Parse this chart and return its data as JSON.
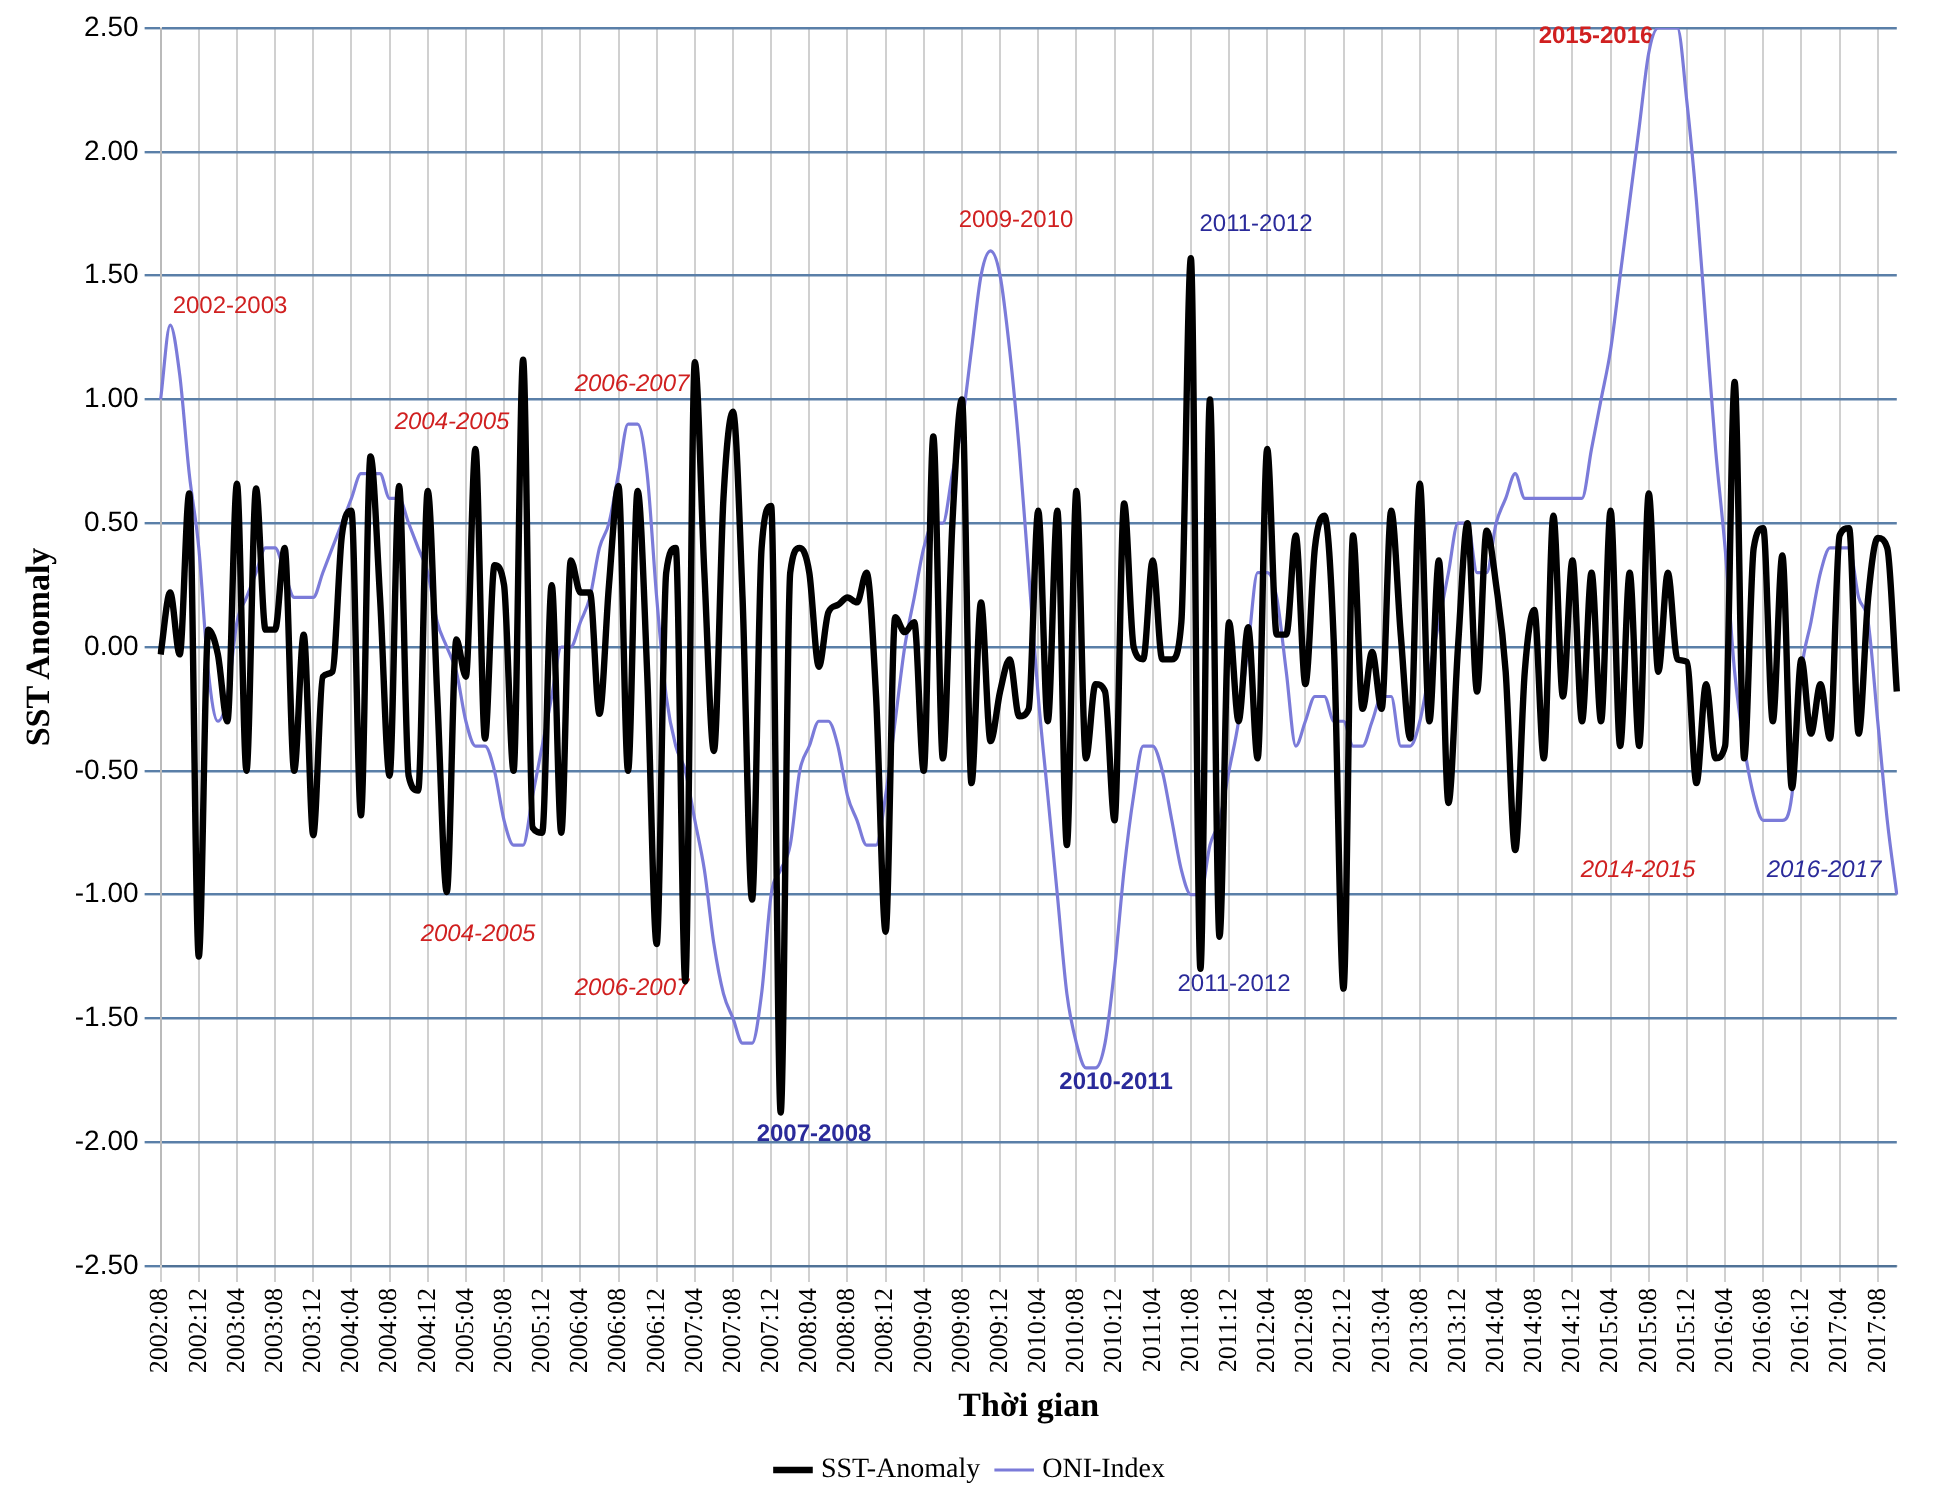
{
  "chart_data": {
    "type": "line",
    "xlabel": "Thời gian",
    "ylabel": "SST Anomaly",
    "categories": [
      "2002:08",
      null,
      null,
      null,
      "2002:12",
      null,
      null,
      null,
      "2003:04",
      null,
      null,
      null,
      "2003:08",
      null,
      null,
      null,
      "2003:12",
      null,
      null,
      null,
      "2004:04",
      null,
      null,
      null,
      "2004:08",
      null,
      null,
      null,
      "2004:12",
      null,
      null,
      null,
      "2005:04",
      null,
      null,
      null,
      "2005:08",
      null,
      null,
      null,
      "2005:12",
      null,
      null,
      null,
      "2006:04",
      null,
      null,
      null,
      "2006:08",
      null,
      null,
      null,
      "2006:12",
      null,
      null,
      null,
      "2007:04",
      null,
      null,
      null,
      "2007:08",
      null,
      null,
      null,
      "2007:12",
      null,
      null,
      null,
      "2008:04",
      null,
      null,
      null,
      "2008:08",
      null,
      null,
      null,
      "2008:12",
      null,
      null,
      null,
      "2009:04",
      null,
      null,
      null,
      "2009:08",
      null,
      null,
      null,
      "2009:12",
      null,
      null,
      null,
      "2010:04",
      null,
      null,
      null,
      "2010:08",
      null,
      null,
      null,
      "2010:12",
      null,
      null,
      null,
      "2011:04",
      null,
      null,
      null,
      "2011:08",
      null,
      null,
      null,
      "2011:12",
      null,
      null,
      null,
      "2012:04",
      null,
      null,
      null,
      "2012:08",
      null,
      null,
      null,
      "2012:12",
      null,
      null,
      null,
      "2013:04",
      null,
      null,
      null,
      "2013:08",
      null,
      null,
      null,
      "2013:12",
      null,
      null,
      null,
      "2014:04",
      null,
      null,
      null,
      "2014:08",
      null,
      null,
      null,
      "2014:12",
      null,
      null,
      null,
      "2015:04",
      null,
      null,
      null,
      "2015:08",
      null,
      null,
      null,
      "2015:12",
      null,
      null,
      null,
      "2016:04",
      null,
      null,
      null,
      "2016:08",
      null,
      null,
      null,
      "2016:12",
      null,
      null,
      null,
      "2017:04",
      null,
      null,
      null,
      "2017:08",
      null,
      null
    ],
    "series": [
      {
        "name": "SST-Anomaly",
        "color": "#000000",
        "values": [
          -0.03,
          0.22,
          -0.03,
          0.62,
          -1.25,
          0.07,
          -0.03,
          -0.3,
          0.66,
          -0.5,
          0.64,
          0.07,
          0.07,
          0.4,
          -0.5,
          0.05,
          -0.76,
          -0.12,
          -0.1,
          0.45,
          0.55,
          -0.68,
          0.77,
          0.2,
          -0.52,
          0.65,
          -0.52,
          -0.58,
          0.63,
          -0.2,
          -0.99,
          0.03,
          -0.12,
          0.8,
          -0.37,
          0.33,
          0.25,
          -0.5,
          1.16,
          -0.73,
          -0.75,
          0.25,
          -0.75,
          0.35,
          0.22,
          0.22,
          -0.27,
          0.25,
          0.65,
          -0.5,
          0.63,
          -0.1,
          -1.2,
          0.3,
          0.4,
          -1.35,
          1.15,
          0.3,
          -0.42,
          0.6,
          0.95,
          0.2,
          -1.02,
          0.4,
          0.57,
          -1.88,
          0.3,
          0.4,
          0.3,
          -0.08,
          0.14,
          0.17,
          0.2,
          0.18,
          0.3,
          -0.2,
          -1.15,
          0.12,
          0.06,
          0.1,
          -0.5,
          0.85,
          -0.45,
          0.5,
          1.0,
          -0.55,
          0.18,
          -0.38,
          -0.18,
          -0.05,
          -0.28,
          -0.25,
          0.55,
          -0.3,
          0.55,
          -0.8,
          0.63,
          -0.45,
          -0.15,
          -0.18,
          -0.7,
          0.58,
          0.0,
          -0.05,
          0.35,
          -0.05,
          -0.05,
          0.1,
          1.57,
          -1.3,
          1.0,
          -1.17,
          0.1,
          -0.3,
          0.08,
          -0.45,
          0.8,
          0.05,
          0.05,
          0.45,
          -0.15,
          0.4,
          0.53,
          0.0,
          -1.38,
          0.45,
          -0.25,
          -0.02,
          -0.25,
          0.55,
          0.05,
          -0.37,
          0.66,
          -0.3,
          0.35,
          -0.63,
          0.0,
          0.5,
          -0.18,
          0.47,
          0.25,
          -0.1,
          -0.82,
          -0.1,
          0.15,
          -0.45,
          0.53,
          -0.2,
          0.35,
          -0.3,
          0.3,
          -0.3,
          0.55,
          -0.4,
          0.3,
          -0.4,
          0.62,
          -0.1,
          0.3,
          -0.05,
          -0.06,
          -0.55,
          -0.15,
          -0.45,
          -0.4,
          1.07,
          -0.45,
          0.4,
          0.48,
          -0.3,
          0.37,
          -0.57,
          -0.05,
          -0.35,
          -0.15,
          -0.37,
          0.45,
          0.48,
          -0.35,
          0.2,
          0.44,
          0.4,
          -0.18
        ]
      },
      {
        "name": "ONI-Index",
        "color": "#7b7bd9",
        "values": [
          1.0,
          1.3,
          1.1,
          0.7,
          0.4,
          -0.1,
          -0.3,
          -0.2,
          0.1,
          0.2,
          0.3,
          0.4,
          0.4,
          0.3,
          0.2,
          0.2,
          0.2,
          0.3,
          0.4,
          0.5,
          0.6,
          0.7,
          0.7,
          0.7,
          0.6,
          0.6,
          0.5,
          0.4,
          0.3,
          0.1,
          0.0,
          -0.1,
          -0.3,
          -0.4,
          -0.4,
          -0.5,
          -0.7,
          -0.8,
          -0.8,
          -0.6,
          -0.4,
          -0.2,
          0.0,
          0.0,
          0.1,
          0.2,
          0.4,
          0.5,
          0.7,
          0.9,
          0.9,
          0.7,
          0.2,
          -0.2,
          -0.4,
          -0.5,
          -0.7,
          -0.9,
          -1.2,
          -1.4,
          -1.5,
          -1.6,
          -1.6,
          -1.4,
          -1.0,
          -0.9,
          -0.8,
          -0.5,
          -0.4,
          -0.3,
          -0.3,
          -0.4,
          -0.6,
          -0.7,
          -0.8,
          -0.8,
          -0.6,
          -0.3,
          0.0,
          0.2,
          0.4,
          0.5,
          0.5,
          0.7,
          0.9,
          1.2,
          1.5,
          1.6,
          1.5,
          1.2,
          0.8,
          0.3,
          -0.2,
          -0.6,
          -1.0,
          -1.4,
          -1.6,
          -1.7,
          -1.7,
          -1.6,
          -1.3,
          -0.9,
          -0.6,
          -0.4,
          -0.4,
          -0.5,
          -0.7,
          -0.9,
          -1.0,
          -1.0,
          -0.8,
          -0.7,
          -0.5,
          -0.3,
          0.0,
          0.3,
          0.3,
          0.2,
          -0.1,
          -0.4,
          -0.3,
          -0.2,
          -0.2,
          -0.3,
          -0.3,
          -0.4,
          -0.4,
          -0.3,
          -0.2,
          -0.2,
          -0.4,
          -0.4,
          -0.3,
          -0.1,
          0.1,
          0.3,
          0.5,
          0.5,
          0.3,
          0.3,
          0.5,
          0.6,
          0.7,
          0.6,
          0.6,
          0.6,
          0.6,
          0.6,
          0.6,
          0.6,
          0.8,
          1.0,
          1.2,
          1.5,
          1.8,
          2.1,
          2.4,
          2.5,
          2.5,
          2.5,
          2.2,
          1.8,
          1.3,
          0.8,
          0.4,
          -0.1,
          -0.4,
          -0.6,
          -0.7,
          -0.7,
          -0.7,
          -0.6,
          -0.1,
          0.1,
          0.3,
          0.4,
          0.4,
          0.4,
          0.2,
          0.1,
          -0.3,
          -0.7,
          -1.0
        ]
      }
    ],
    "ylim": [
      -2.5,
      2.5
    ],
    "yticks": [
      {
        "value": -2.5,
        "label": "-2.50"
      },
      {
        "value": -2,
        "label": "-2.00"
      },
      {
        "value": -1.5,
        "label": "-1.50"
      },
      {
        "value": -1,
        "label": "-1.00"
      },
      {
        "value": -0.5,
        "label": "-0.50"
      },
      {
        "value": 0,
        "label": "0.00"
      },
      {
        "value": 0.5,
        "label": "0.50"
      },
      {
        "value": 1,
        "label": "1.00"
      },
      {
        "value": 1.5,
        "label": "1.50"
      },
      {
        "value": 2,
        "label": "2.00"
      },
      {
        "value": 2.5,
        "label": "2.50"
      }
    ],
    "grid": true,
    "legend": "bottom",
    "annotations": [
      "2002-2003",
      "2004-2005",
      "2004-2005",
      "2006-2007",
      "2006-2007",
      "2007-2008",
      "2009-2010",
      "2010-2011",
      "2011-2012",
      "2011-2012",
      "2014-2015",
      "2015-2016",
      "2016-2017"
    ]
  }
}
